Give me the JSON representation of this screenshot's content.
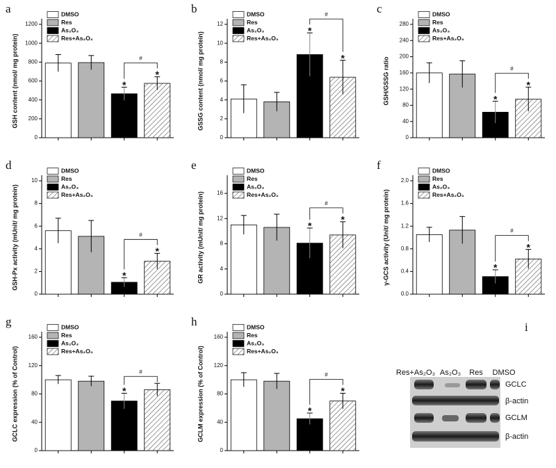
{
  "chart_data": [
    {
      "type": "bar",
      "panel": "a",
      "ylabel": "GSH content (nmol/ mg protein)",
      "ylim": [
        0,
        1200
      ],
      "yticks": [
        0,
        200,
        400,
        600,
        800,
        1000,
        1200
      ],
      "series": [
        {
          "name": "DMSO",
          "color": "#ffffff",
          "values": [
            790
          ],
          "errors": [
            90
          ]
        },
        {
          "name": "Res",
          "color": "#b4b4b4",
          "values": [
            795
          ],
          "errors": [
            75
          ]
        },
        {
          "name": "As₂O₃",
          "color": "#000000",
          "values": [
            465
          ],
          "errors": [
            70
          ],
          "marker_label": "*"
        },
        {
          "name": "Res+As₂O₃",
          "color": "#ffffff",
          "hatch": true,
          "values": [
            575
          ],
          "errors": [
            70
          ],
          "marker_label": "*"
        }
      ],
      "bracket": {
        "text": "#",
        "between": [
          2,
          3
        ]
      }
    },
    {
      "type": "bar",
      "panel": "b",
      "ylabel": "GSSG content (nmol/ mg protein)",
      "ylim": [
        0,
        12
      ],
      "yticks": [
        0,
        2,
        4,
        6,
        8,
        10,
        12
      ],
      "series": [
        {
          "name": "DMSO",
          "color": "#ffffff",
          "values": [
            4.1
          ],
          "errors": [
            1.5
          ]
        },
        {
          "name": "Res",
          "color": "#b4b4b4",
          "values": [
            3.8
          ],
          "errors": [
            1.0
          ]
        },
        {
          "name": "As₂O₃",
          "color": "#000000",
          "values": [
            8.8
          ],
          "errors": [
            2.3
          ],
          "marker_label": "*"
        },
        {
          "name": "Res+As₂O₃",
          "color": "#ffffff",
          "hatch": true,
          "values": [
            6.4
          ],
          "errors": [
            1.8
          ],
          "marker_label": "*"
        }
      ],
      "bracket": {
        "text": "#",
        "between": [
          2,
          3
        ]
      }
    },
    {
      "type": "bar",
      "panel": "c",
      "ylabel": "GSH/GSSG ratio",
      "ylim": [
        0,
        280
      ],
      "yticks": [
        0,
        40,
        80,
        120,
        160,
        200,
        240,
        280
      ],
      "series": [
        {
          "name": "DMSO",
          "color": "#ffffff",
          "values": [
            160
          ],
          "errors": [
            25
          ]
        },
        {
          "name": "Res",
          "color": "#b4b4b4",
          "values": [
            157
          ],
          "errors": [
            33
          ]
        },
        {
          "name": "As₂O₃",
          "color": "#000000",
          "values": [
            63
          ],
          "errors": [
            27
          ],
          "marker_label": "*"
        },
        {
          "name": "Res+As₂O₃",
          "color": "#ffffff",
          "hatch": true,
          "values": [
            95
          ],
          "errors": [
            30
          ],
          "marker_label": "*"
        }
      ],
      "bracket": {
        "text": "#",
        "between": [
          2,
          3
        ]
      }
    },
    {
      "type": "bar",
      "panel": "d",
      "ylabel": "GSH-Px activity (mUnit/ mg protein)",
      "ylim": [
        0,
        10
      ],
      "yticks": [
        0,
        2,
        4,
        6,
        8,
        10
      ],
      "series": [
        {
          "name": "DMSO",
          "color": "#ffffff",
          "values": [
            5.6
          ],
          "errors": [
            1.1
          ]
        },
        {
          "name": "Res",
          "color": "#b4b4b4",
          "values": [
            5.1
          ],
          "errors": [
            1.4
          ]
        },
        {
          "name": "As₂O₃",
          "color": "#000000",
          "values": [
            1.05
          ],
          "errors": [
            0.4
          ],
          "marker_label": "*"
        },
        {
          "name": "Res+As₂O₃",
          "color": "#ffffff",
          "hatch": true,
          "values": [
            2.9
          ],
          "errors": [
            0.7
          ],
          "marker_label": "*"
        }
      ],
      "bracket": {
        "text": "#",
        "between": [
          2,
          3
        ]
      }
    },
    {
      "type": "bar",
      "panel": "e",
      "ylabel": "GR activity (mUnit/ mg protein)",
      "ylim": [
        0,
        18
      ],
      "yticks": [
        0,
        4,
        8,
        12,
        16
      ],
      "series": [
        {
          "name": "DMSO",
          "color": "#ffffff",
          "values": [
            11
          ],
          "errors": [
            1.5
          ]
        },
        {
          "name": "Res",
          "color": "#b4b4b4",
          "values": [
            10.6
          ],
          "errors": [
            2.1
          ]
        },
        {
          "name": "As₂O₃",
          "color": "#000000",
          "values": [
            8.1
          ],
          "errors": [
            2.4
          ],
          "marker_label": "*"
        },
        {
          "name": "Res+As₂O₃",
          "color": "#ffffff",
          "hatch": true,
          "values": [
            9.4
          ],
          "errors": [
            2.1
          ],
          "marker_label": "*"
        }
      ],
      "bracket": {
        "text": "#",
        "between": [
          2,
          3
        ]
      }
    },
    {
      "type": "bar",
      "panel": "f",
      "ylabel": "γ-GCS activity (Unit/ mg protein)",
      "ylim": [
        0,
        2.0
      ],
      "yticks": [
        {
          "value": 0,
          "label": "0.0"
        },
        0.4,
        0.8,
        1.2,
        1.6,
        {
          "value": 2,
          "label": "2.0"
        }
      ],
      "series": [
        {
          "name": "DMSO",
          "color": "#ffffff",
          "values": [
            1.05
          ],
          "errors": [
            0.13
          ]
        },
        {
          "name": "Res",
          "color": "#b4b4b4",
          "values": [
            1.13
          ],
          "errors": [
            0.24
          ]
        },
        {
          "name": "As₂O₃",
          "color": "#000000",
          "values": [
            0.31
          ],
          "errors": [
            0.12
          ],
          "marker_label": "*"
        },
        {
          "name": "Res+As₂O₃",
          "color": "#ffffff",
          "hatch": true,
          "values": [
            0.62
          ],
          "errors": [
            0.17
          ],
          "marker_label": "*"
        }
      ],
      "bracket": {
        "text": "#",
        "between": [
          2,
          3
        ]
      }
    },
    {
      "type": "bar",
      "panel": "g",
      "ylabel": "GCLC expression (% of Control)",
      "ylim": [
        0,
        160
      ],
      "yticks": [
        0,
        40,
        80,
        120,
        160
      ],
      "series": [
        {
          "name": "DMSO",
          "color": "#ffffff",
          "values": [
            100
          ],
          "errors": [
            6
          ]
        },
        {
          "name": "Res",
          "color": "#b4b4b4",
          "values": [
            98
          ],
          "errors": [
            7
          ]
        },
        {
          "name": "As₂O₃",
          "color": "#000000",
          "values": [
            70
          ],
          "errors": [
            11
          ],
          "marker_label": "*"
        },
        {
          "name": "Res+As₂O₃",
          "color": "#ffffff",
          "hatch": true,
          "values": [
            86
          ],
          "errors": [
            9
          ]
        }
      ],
      "bracket": {
        "text": "#",
        "between": [
          2,
          3
        ]
      }
    },
    {
      "type": "bar",
      "panel": "h",
      "ylabel": "GCLM expression (% of Control)",
      "ylim": [
        0,
        160
      ],
      "yticks": [
        0,
        40,
        80,
        120,
        160
      ],
      "series": [
        {
          "name": "DMSO",
          "color": "#ffffff",
          "values": [
            100
          ],
          "errors": [
            10
          ]
        },
        {
          "name": "Res",
          "color": "#b4b4b4",
          "values": [
            98
          ],
          "errors": [
            11
          ]
        },
        {
          "name": "As₂O₃",
          "color": "#000000",
          "values": [
            45
          ],
          "errors": [
            8
          ],
          "marker_label": "*"
        },
        {
          "name": "Res+As₂O₃",
          "color": "#ffffff",
          "hatch": true,
          "values": [
            70
          ],
          "errors": [
            11
          ],
          "marker_label": "*"
        }
      ],
      "bracket": {
        "text": "#",
        "between": [
          2,
          3
        ]
      }
    }
  ],
  "blot": {
    "panel": "i",
    "lanes": [
      "Res+As₂O₃",
      "As₂O₃",
      "Res",
      "DMSO"
    ],
    "rows": [
      "GCLC",
      "β-actin",
      "GCLM",
      "β-actin"
    ]
  }
}
